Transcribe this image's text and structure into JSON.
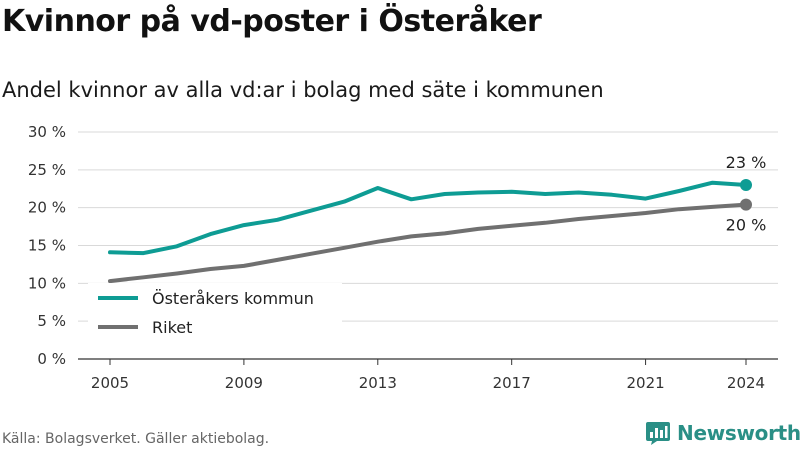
{
  "header": {
    "title": "Kvinnor på vd-poster i Österåker",
    "subtitle": "Andel kvinnor av alla vd:ar i bolag med säte i kommunen"
  },
  "footer": {
    "source": "Källa: Bolagsverket. Gäller aktiebolag.",
    "brand": "Newsworthy"
  },
  "colors": {
    "series_primary": "#0e9c94",
    "series_secondary": "#707070",
    "grid": "#d9d9d9"
  },
  "chart_data": {
    "type": "line",
    "ylim": [
      0,
      30
    ],
    "yticks": [
      {
        "value": 0,
        "label": "0 %"
      },
      {
        "value": 5,
        "label": "5 %"
      },
      {
        "value": 10,
        "label": "10 %"
      },
      {
        "value": 15,
        "label": "15 %"
      },
      {
        "value": 20,
        "label": "20 %"
      },
      {
        "value": 25,
        "label": "25 %"
      },
      {
        "value": 30,
        "label": "30 %"
      }
    ],
    "xlim": [
      2005,
      2024
    ],
    "xticks": [
      {
        "value": 2005,
        "label": "2005"
      },
      {
        "value": 2009,
        "label": "2009"
      },
      {
        "value": 2013,
        "label": "2013"
      },
      {
        "value": 2017,
        "label": "2017"
      },
      {
        "value": 2021,
        "label": "2021"
      },
      {
        "value": 2024,
        "label": "2024"
      }
    ],
    "x": [
      2005,
      2006,
      2007,
      2008,
      2009,
      2010,
      2011,
      2012,
      2013,
      2014,
      2015,
      2016,
      2017,
      2018,
      2019,
      2020,
      2021,
      2022,
      2023,
      2024
    ],
    "legend_position": "bottom-left",
    "grid": true,
    "series": [
      {
        "name": "Österåkers kommun",
        "color": "#0e9c94",
        "values": [
          14.1,
          14.0,
          14.9,
          16.5,
          17.7,
          18.4,
          19.6,
          20.8,
          22.6,
          21.1,
          21.8,
          22.0,
          22.1,
          21.8,
          22.0,
          21.7,
          21.2,
          22.2,
          23.3,
          23.0
        ],
        "end_label": "23 %",
        "end_label_position": "above"
      },
      {
        "name": "Riket",
        "color": "#707070",
        "values": [
          10.3,
          10.8,
          11.3,
          11.9,
          12.3,
          13.1,
          13.9,
          14.7,
          15.5,
          16.2,
          16.6,
          17.2,
          17.6,
          18.0,
          18.5,
          18.9,
          19.3,
          19.8,
          20.1,
          20.4
        ],
        "end_label": "20 %",
        "end_label_position": "below"
      }
    ]
  }
}
